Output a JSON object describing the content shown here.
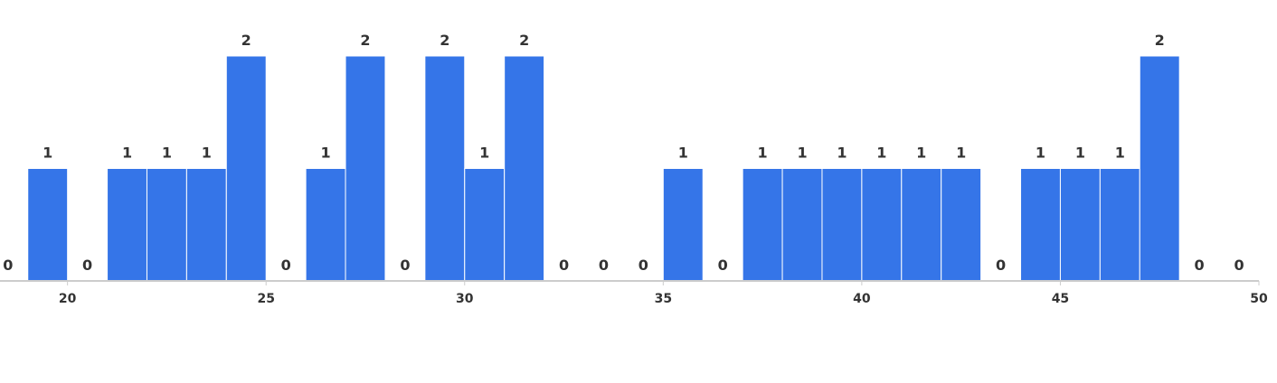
{
  "chart_data": {
    "type": "bar",
    "bin_width": 1,
    "x": [
      18,
      19,
      20,
      21,
      22,
      23,
      24,
      25,
      26,
      27,
      28,
      29,
      30,
      31,
      32,
      33,
      34,
      35,
      36,
      37,
      38,
      39,
      40,
      41,
      42,
      43,
      44,
      45,
      46,
      47,
      48,
      49
    ],
    "values": [
      0,
      1,
      0,
      1,
      1,
      1,
      2,
      0,
      1,
      2,
      0,
      2,
      1,
      2,
      0,
      0,
      0,
      1,
      0,
      1,
      1,
      1,
      1,
      1,
      1,
      0,
      1,
      1,
      1,
      2,
      0,
      0
    ],
    "xlim": [
      18.3,
      50
    ],
    "ylim": [
      0,
      2
    ],
    "x_ticks": [
      "20",
      "25",
      "30",
      "35",
      "40",
      "45",
      "50"
    ],
    "grid": false,
    "bar_color": "#3575E8",
    "data_labels": true
  }
}
